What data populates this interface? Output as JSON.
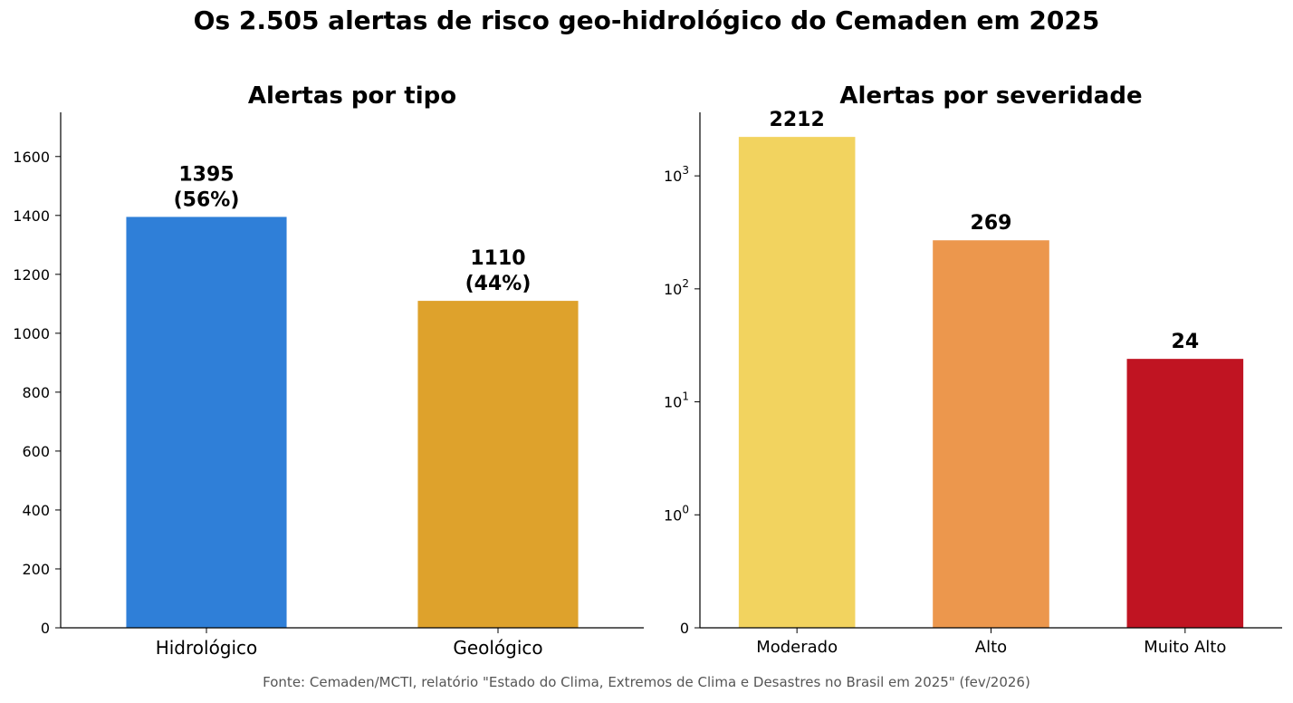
{
  "title": "Os 2.505 alertas de risco geo-hidrológico do Cemaden em 2025",
  "source": "Fonte: Cemaden/MCTI, relatório \"Estado do Clima, Extremos de Clima e Desastres no Brasil em 2025\" (fev/2026)",
  "chart_data": [
    {
      "type": "bar",
      "title": "Alertas por tipo",
      "xlabel": "",
      "ylabel": "",
      "categories": [
        "Hidrológico",
        "Geológico"
      ],
      "values": [
        1395,
        1110
      ],
      "bar_labels": [
        "1395\n(56%)",
        "1110\n(44%)"
      ],
      "colors": [
        "#2f7fd8",
        "#dea22c"
      ],
      "ylim": [
        0,
        1750
      ],
      "yscale": "linear",
      "yticks": [
        0,
        200,
        400,
        600,
        800,
        1000,
        1200,
        1400,
        1600
      ],
      "ytick_labels": [
        "0",
        "200",
        "400",
        "600",
        "800",
        "1000",
        "1200",
        "1400",
        "1600"
      ],
      "grid": false
    },
    {
      "type": "bar",
      "title": "Alertas por severidade",
      "xlabel": "",
      "ylabel": "",
      "categories": [
        "Moderado",
        "Alto",
        "Muito Alto"
      ],
      "values": [
        2212,
        269,
        24
      ],
      "bar_labels": [
        "2212",
        "269",
        "24"
      ],
      "colors": [
        "#f2d35f",
        "#ec974d",
        "#c01422"
      ],
      "yscale": "symlog",
      "ylim": [
        0,
        3650
      ],
      "yticks": [
        0,
        1,
        10,
        100,
        1000
      ],
      "ytick_labels": [
        "0",
        "10^0",
        "10^1",
        "10^2",
        "10^3"
      ],
      "grid": false
    }
  ]
}
